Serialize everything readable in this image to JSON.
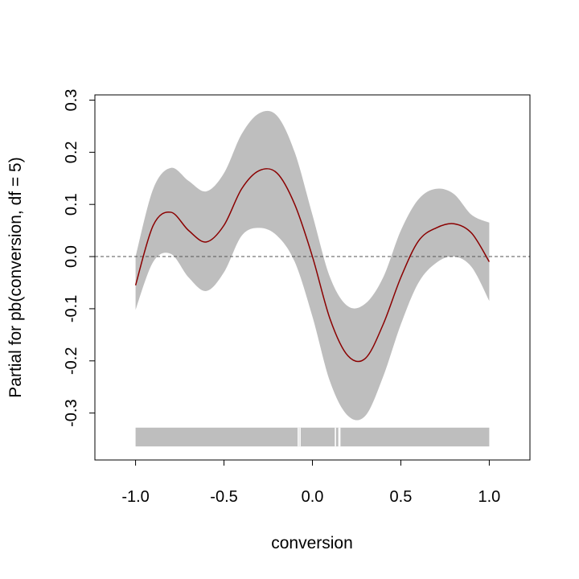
{
  "chart_data": {
    "type": "line",
    "title": "",
    "xlabel": "conversion",
    "ylabel": "Partial for pb(conversion, df = 5)",
    "xlim": [
      -1.23,
      1.23
    ],
    "ylim": [
      -0.39,
      0.31
    ],
    "x_ticks": [
      {
        "value": -1.0,
        "label": "-1.0"
      },
      {
        "value": -0.5,
        "label": "-0.5"
      },
      {
        "value": 0.0,
        "label": "0.0"
      },
      {
        "value": 0.5,
        "label": "0.5"
      },
      {
        "value": 1.0,
        "label": "1.0"
      }
    ],
    "y_ticks": [
      {
        "value": -0.3,
        "label": "-0.3"
      },
      {
        "value": -0.2,
        "label": "-0.2"
      },
      {
        "value": -0.1,
        "label": "-0.1"
      },
      {
        "value": 0.0,
        "label": "0.0"
      },
      {
        "value": 0.1,
        "label": "0.1"
      },
      {
        "value": 0.2,
        "label": "0.2"
      },
      {
        "value": 0.3,
        "label": "0.3"
      }
    ],
    "grid": false,
    "reference_line": {
      "y": 0.0,
      "style": "dashed",
      "color": "#555555"
    },
    "fit": {
      "color": "#8b0000",
      "x": [
        -1.0,
        -0.9,
        -0.8,
        -0.7,
        -0.6,
        -0.5,
        -0.4,
        -0.3,
        -0.2,
        -0.1,
        0.0,
        0.1,
        0.2,
        0.3,
        0.4,
        0.5,
        0.6,
        0.7,
        0.8,
        0.9,
        1.0
      ],
      "y": [
        -0.055,
        0.06,
        0.085,
        0.05,
        0.028,
        0.06,
        0.13,
        0.165,
        0.16,
        0.1,
        0.0,
        -0.12,
        -0.19,
        -0.195,
        -0.13,
        -0.04,
        0.03,
        0.055,
        0.063,
        0.045,
        -0.01
      ]
    },
    "confidence_band": {
      "color": "#bebebe",
      "upper": [
        0.0,
        0.13,
        0.17,
        0.145,
        0.125,
        0.16,
        0.235,
        0.275,
        0.27,
        0.2,
        0.08,
        -0.04,
        -0.095,
        -0.09,
        -0.04,
        0.05,
        0.11,
        0.13,
        0.12,
        0.08,
        0.065
      ],
      "lower": [
        -0.102,
        -0.01,
        0.005,
        -0.04,
        -0.066,
        -0.03,
        0.04,
        0.055,
        0.04,
        -0.01,
        -0.115,
        -0.24,
        -0.305,
        -0.305,
        -0.23,
        -0.13,
        -0.05,
        -0.012,
        0.0,
        -0.02,
        -0.085
      ]
    },
    "rug": {
      "color": "#bebebe",
      "y_top": -0.328,
      "y_bottom": -0.364,
      "gaps": [
        -0.08,
        -0.07,
        0.13,
        0.15,
        0.155
      ]
    }
  }
}
